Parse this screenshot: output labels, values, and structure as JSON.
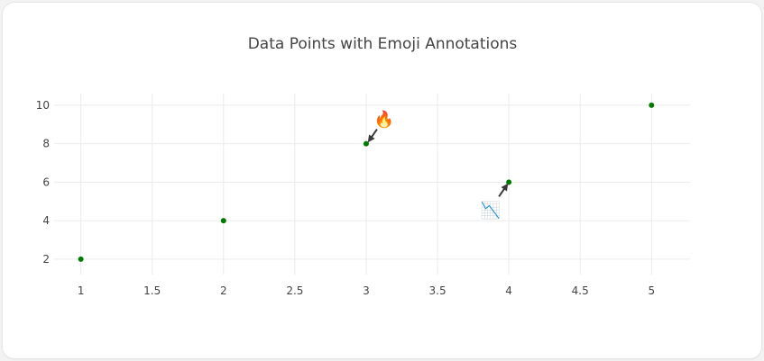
{
  "chart_data": {
    "type": "scatter",
    "title": "Data Points with Emoji Annotations",
    "xlabel": "",
    "ylabel": "",
    "x": [
      1,
      2,
      3,
      4,
      5
    ],
    "y": [
      2,
      4,
      8,
      6,
      10
    ],
    "xlim": [
      0.8,
      5.27
    ],
    "ylim": [
      1.2,
      10.6
    ],
    "x_ticks": [
      1,
      1.5,
      2,
      2.5,
      3,
      3.5,
      4,
      4.5,
      5
    ],
    "x_tick_labels": [
      "1",
      "1.5",
      "2",
      "2.5",
      "3",
      "3.5",
      "4",
      "4.5",
      "5"
    ],
    "y_ticks": [
      2,
      4,
      6,
      8,
      10
    ],
    "y_tick_labels": [
      "2",
      "4",
      "6",
      "8",
      "10"
    ],
    "grid": true,
    "marker_color": "#007a00",
    "annotations": [
      {
        "x": 3,
        "y": 8,
        "text": "🔥",
        "icon": "fire-emoji",
        "direction": "upper-right"
      },
      {
        "x": 4,
        "y": 6,
        "text": "📉",
        "icon": "chart-decreasing-emoji",
        "direction": "lower-left"
      }
    ]
  }
}
